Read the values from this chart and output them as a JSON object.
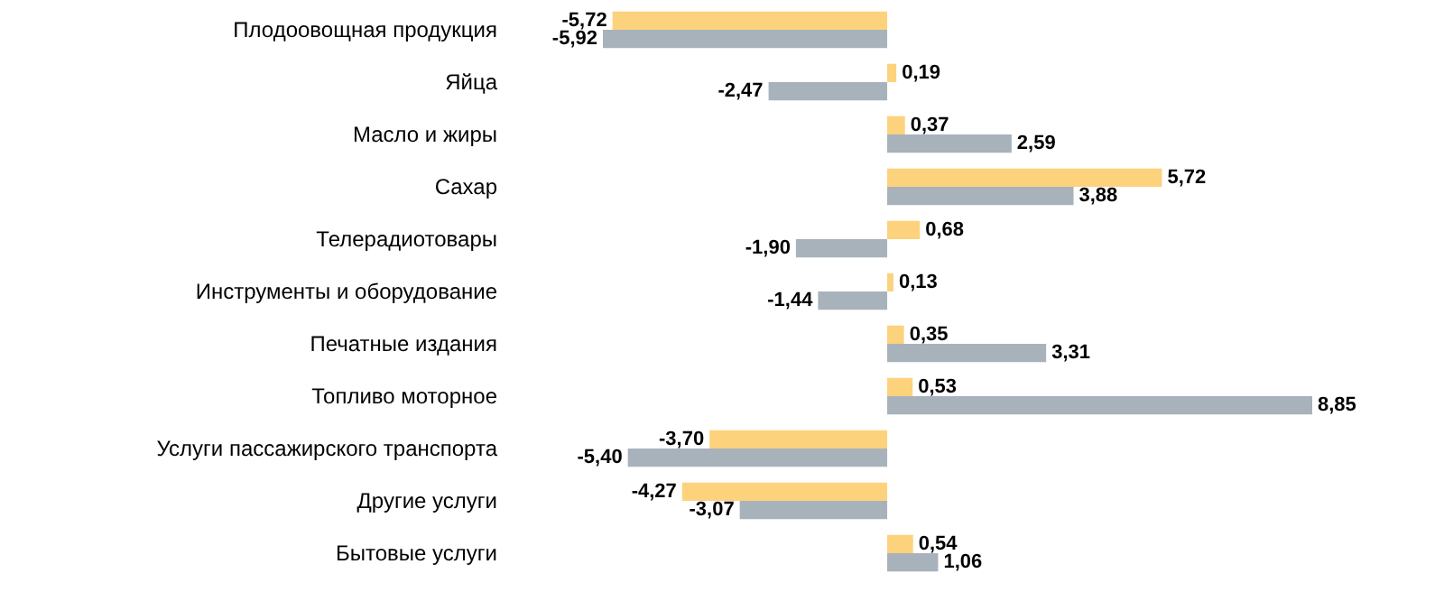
{
  "chart_data": {
    "type": "bar",
    "orientation": "horizontal",
    "categories": [
      "Плодоовощная продукция",
      "Яйца",
      "Масло и жиры",
      "Сахар",
      "Телерадиотовары",
      "Инструменты и оборудование",
      "Печатные издания",
      "Топливо моторное",
      "Услуги пассажирского транспорта",
      "Другие услуги",
      "Бытовые услуги"
    ],
    "series": [
      {
        "color": "#fdd27c",
        "values": [
          -5.72,
          0.19,
          0.37,
          5.72,
          0.68,
          0.13,
          0.35,
          0.53,
          -3.7,
          -4.27,
          0.54
        ],
        "value_labels": [
          "-5,72",
          "0,19",
          "0,37",
          "5,72",
          "0,68",
          "0,13",
          "0,35",
          "0,53",
          "-3,70",
          "-4,27",
          "0,54"
        ]
      },
      {
        "color": "#a8b2bb",
        "values": [
          -5.92,
          -2.47,
          2.59,
          3.88,
          -1.9,
          -1.44,
          3.31,
          8.85,
          -5.4,
          -3.07,
          1.06
        ],
        "value_labels": [
          "-5,92",
          "-2,47",
          "2,59",
          "3,88",
          "-1,90",
          "-1,44",
          "3,31",
          "8,85",
          "-5,40",
          "-3,07",
          "1,06"
        ]
      }
    ]
  }
}
